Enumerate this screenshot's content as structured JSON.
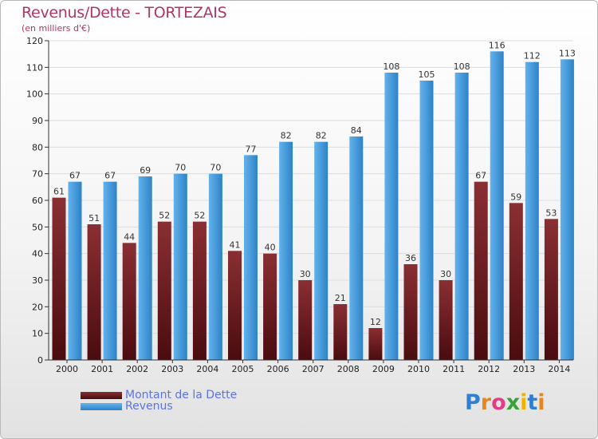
{
  "title": "Revenus/Dette - TORTEZAIS",
  "subtitle": "(en milliers d'€)",
  "colors": {
    "debt_top": "#8a2f33",
    "debt_bottom": "#4a0c0f",
    "revenue_top": "#62b2ec",
    "revenue_bottom": "#2e82c6",
    "axis_text": "#222222",
    "grid": "#dddddd"
  },
  "legend": {
    "debt_label": "Montant de la Dette",
    "revenue_label": "Revenus"
  },
  "logo": {
    "text": "Proxiti",
    "letter_colors": [
      "#2f7fd0",
      "#e8861c",
      "#e03f86",
      "#3aa13a",
      "#f0b400",
      "#2f7fd0",
      "#e8861c"
    ]
  },
  "chart_data": {
    "type": "bar",
    "categories": [
      "2000",
      "2001",
      "2002",
      "2003",
      "2004",
      "2005",
      "2006",
      "2007",
      "2008",
      "2009",
      "2010",
      "2011",
      "2012",
      "2013",
      "2014"
    ],
    "series": [
      {
        "name": "Montant de la Dette",
        "values": [
          61,
          51,
          44,
          52,
          52,
          41,
          40,
          30,
          21,
          12,
          36,
          30,
          67,
          59,
          53
        ]
      },
      {
        "name": "Revenus",
        "values": [
          67,
          67,
          69,
          70,
          70,
          77,
          82,
          82,
          84,
          108,
          105,
          108,
          116,
          112,
          113
        ]
      }
    ],
    "ylim": [
      0,
      120
    ],
    "yticks": [
      0,
      10,
      20,
      30,
      40,
      50,
      60,
      70,
      80,
      90,
      100,
      110,
      120
    ],
    "grid": true,
    "legend_position": "bottom-left",
    "data_labels": true
  }
}
